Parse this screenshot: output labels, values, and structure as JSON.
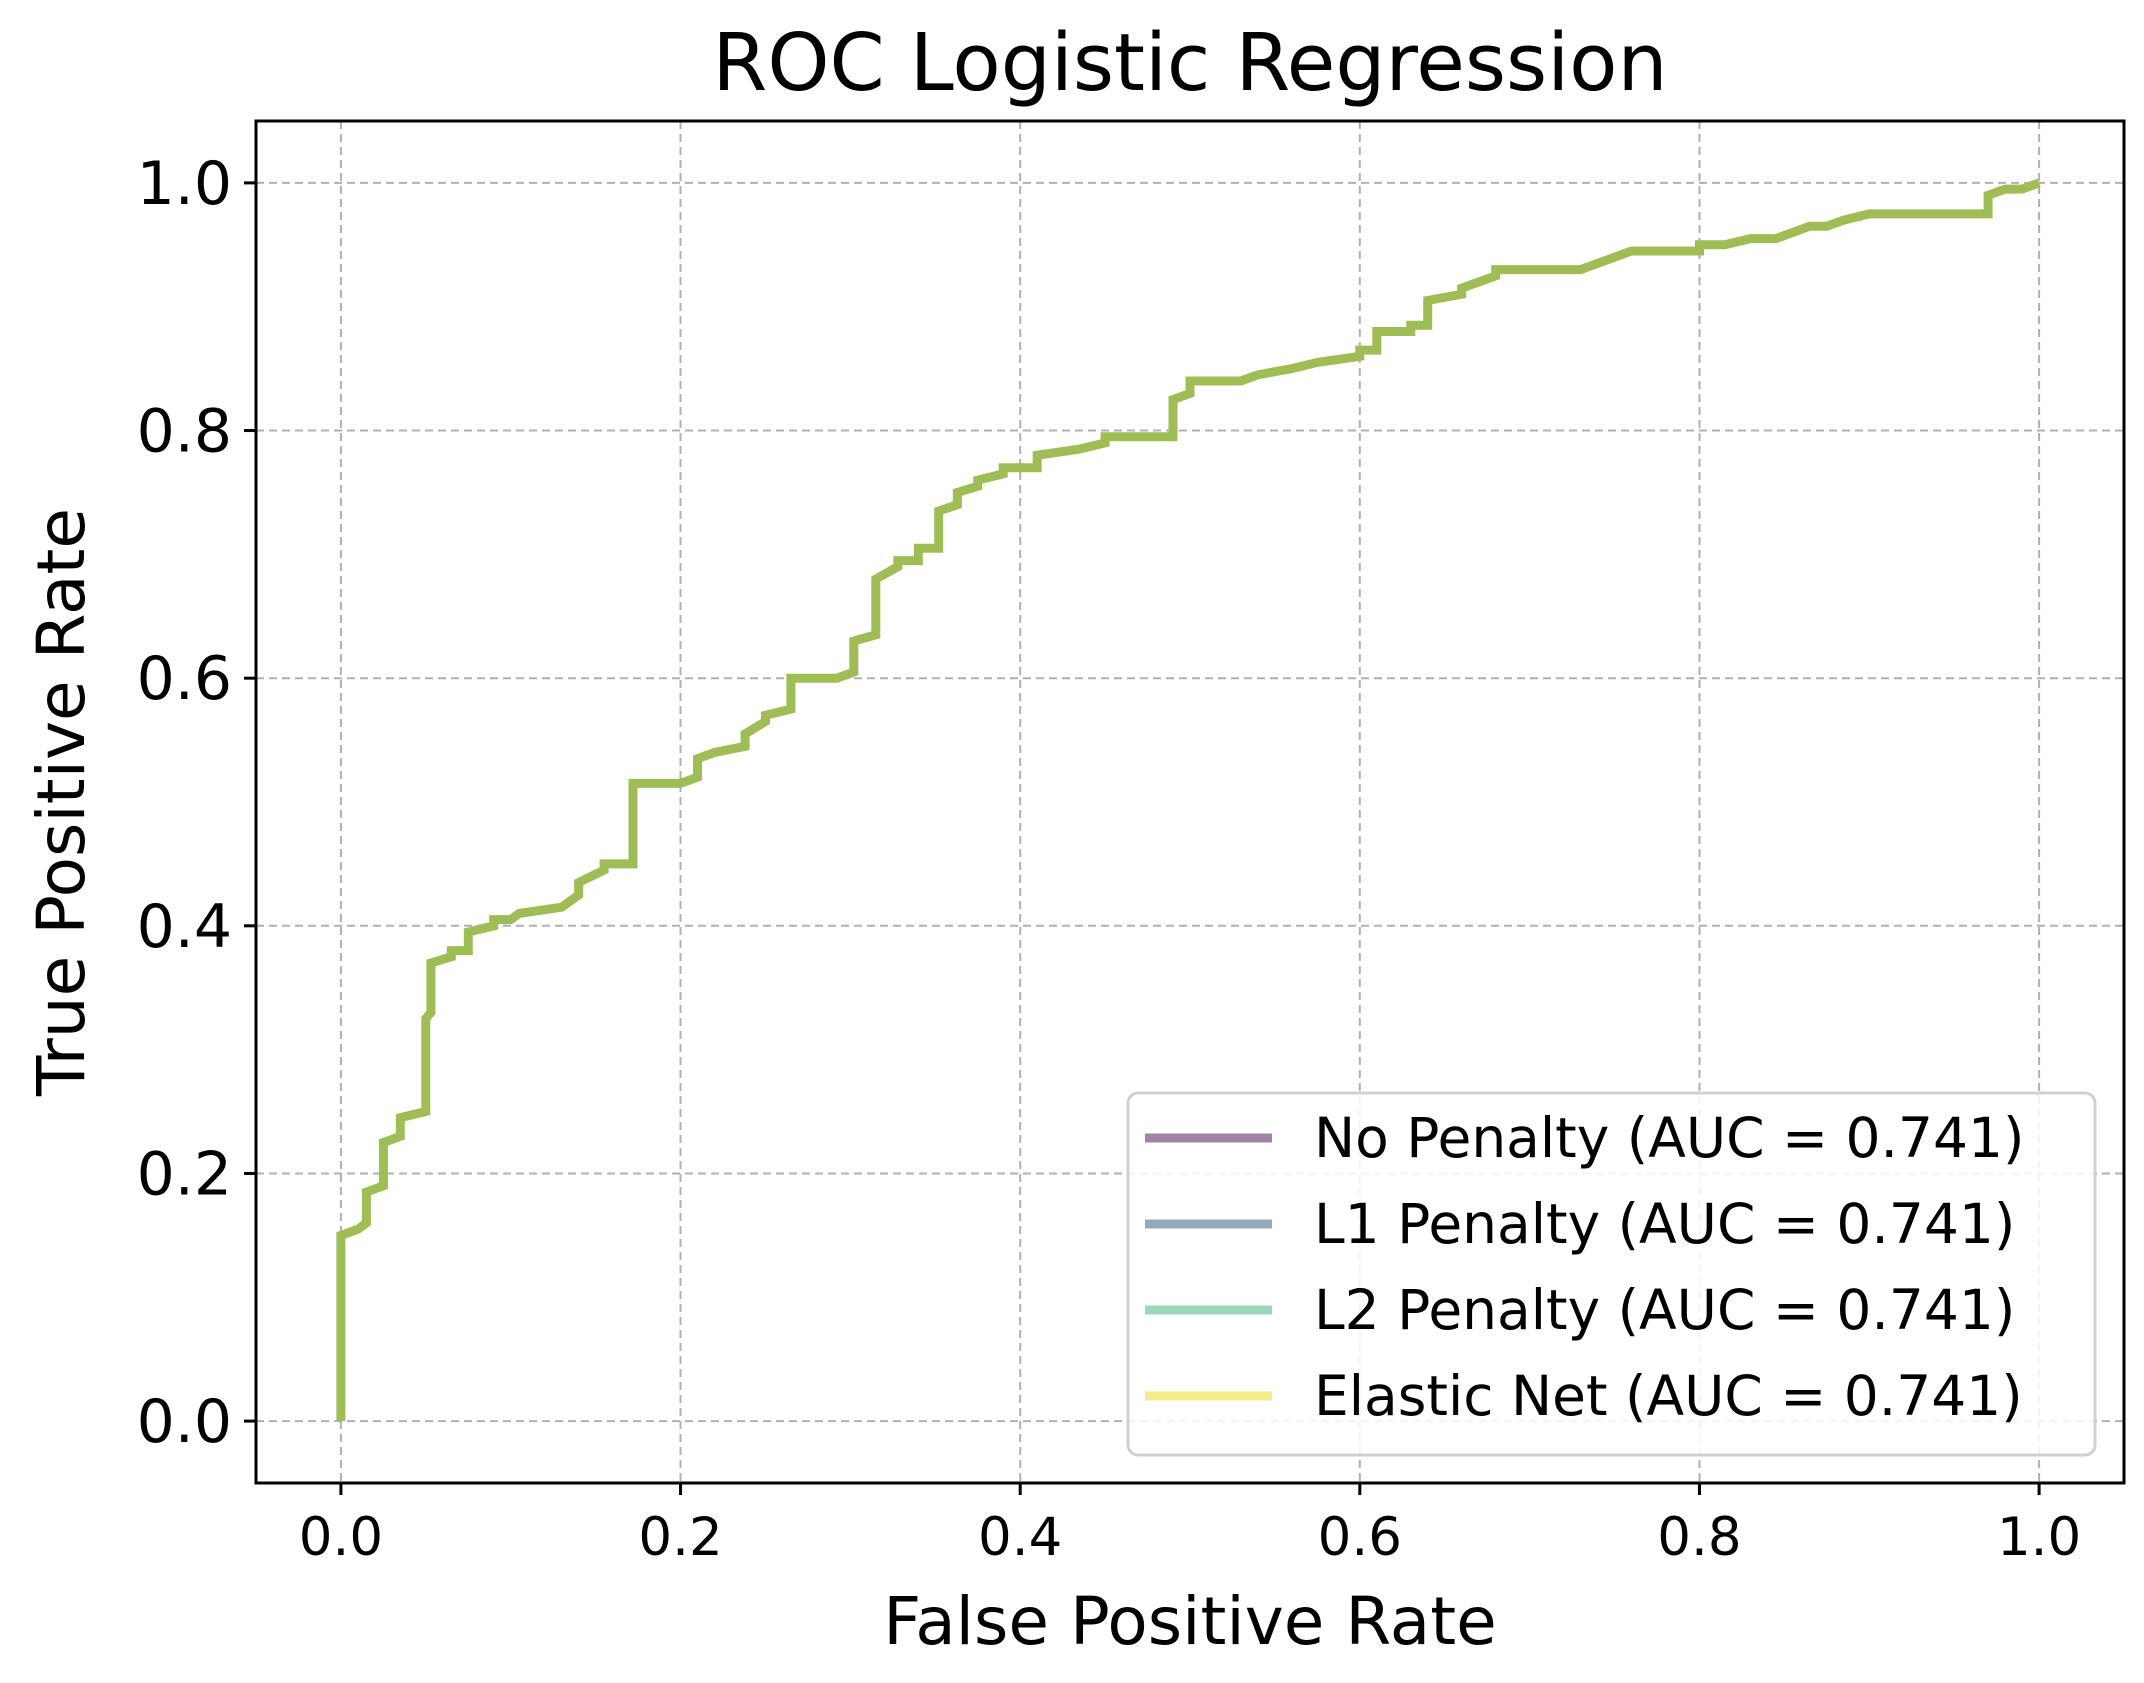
{
  "chart_data": {
    "type": "line",
    "title": "ROC Logistic Regression",
    "xlabel": "False Positive Rate",
    "ylabel": "True Positive Rate",
    "xlim": [
      -0.05,
      1.05
    ],
    "ylim": [
      -0.05,
      1.05
    ],
    "x_ticks": [
      0.0,
      0.2,
      0.4,
      0.6,
      0.8,
      1.0
    ],
    "x_tick_labels": [
      "0.0",
      "0.2",
      "0.4",
      "0.6",
      "0.8",
      "1.0"
    ],
    "y_ticks": [
      0.0,
      0.2,
      0.4,
      0.6,
      0.8,
      1.0
    ],
    "y_tick_labels": [
      "0.0",
      "0.2",
      "0.4",
      "0.6",
      "0.8",
      "1.0"
    ],
    "grid": true,
    "grid_style": "dashed",
    "legend_position": "lower-right",
    "series": [
      {
        "name": "No Penalty (AUC = 0.741)",
        "color": "#a283a8"
      },
      {
        "name": "L1 Penalty (AUC = 0.741)",
        "color": "#93a9bb"
      },
      {
        "name": "L2 Penalty (AUC = 0.741)",
        "color": "#9ad8b8"
      },
      {
        "name": "Elastic Net (AUC = 0.741)",
        "color": "#f5ec8a"
      }
    ],
    "visible_curve_color": "#9fbd55",
    "roc_curve": {
      "fpr": [
        0.0,
        0.0,
        0.01,
        0.015,
        0.015,
        0.025,
        0.025,
        0.035,
        0.035,
        0.05,
        0.05,
        0.053,
        0.053,
        0.065,
        0.065,
        0.075,
        0.075,
        0.09,
        0.09,
        0.1,
        0.1,
        0.105,
        0.105,
        0.13,
        0.14,
        0.14,
        0.155,
        0.155,
        0.172,
        0.172,
        0.2,
        0.21,
        0.21,
        0.22,
        0.22,
        0.238,
        0.238,
        0.25,
        0.25,
        0.265,
        0.265,
        0.292,
        0.302,
        0.302,
        0.315,
        0.315,
        0.328,
        0.328,
        0.34,
        0.34,
        0.352,
        0.352,
        0.363,
        0.363,
        0.375,
        0.375,
        0.39,
        0.39,
        0.41,
        0.41,
        0.435,
        0.45,
        0.45,
        0.49,
        0.49,
        0.5,
        0.5,
        0.53,
        0.54,
        0.56,
        0.575,
        0.6,
        0.6,
        0.61,
        0.61,
        0.63,
        0.63,
        0.64,
        0.64,
        0.66,
        0.66,
        0.67,
        0.68,
        0.68,
        0.73,
        0.74,
        0.75,
        0.76,
        0.8,
        0.8,
        0.815,
        0.83,
        0.845,
        0.855,
        0.865,
        0.875,
        0.885,
        0.9,
        0.97,
        0.97,
        0.98,
        0.99,
        1.0
      ],
      "tpr": [
        0.0,
        0.15,
        0.155,
        0.16,
        0.185,
        0.19,
        0.225,
        0.23,
        0.245,
        0.25,
        0.325,
        0.33,
        0.37,
        0.375,
        0.38,
        0.38,
        0.395,
        0.4,
        0.405,
        0.405,
        0.405,
        0.41,
        0.41,
        0.415,
        0.425,
        0.435,
        0.445,
        0.45,
        0.45,
        0.515,
        0.515,
        0.52,
        0.535,
        0.54,
        0.54,
        0.545,
        0.555,
        0.565,
        0.57,
        0.575,
        0.6,
        0.6,
        0.605,
        0.63,
        0.635,
        0.68,
        0.69,
        0.695,
        0.695,
        0.705,
        0.705,
        0.735,
        0.74,
        0.75,
        0.755,
        0.76,
        0.765,
        0.77,
        0.77,
        0.78,
        0.785,
        0.79,
        0.795,
        0.795,
        0.825,
        0.83,
        0.84,
        0.84,
        0.845,
        0.85,
        0.855,
        0.86,
        0.865,
        0.865,
        0.88,
        0.88,
        0.885,
        0.885,
        0.905,
        0.91,
        0.915,
        0.92,
        0.925,
        0.93,
        0.93,
        0.935,
        0.94,
        0.945,
        0.945,
        0.95,
        0.95,
        0.955,
        0.955,
        0.96,
        0.965,
        0.965,
        0.97,
        0.975,
        0.975,
        0.99,
        0.995,
        0.995,
        1.0
      ]
    }
  }
}
